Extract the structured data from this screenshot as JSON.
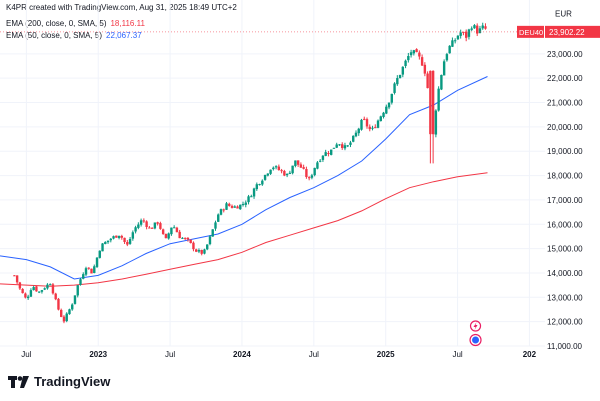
{
  "header": {
    "attribution": "K4PR created with TradingView.com, Aug 31, 2025 18:49 UTC+2"
  },
  "legend": [
    {
      "label": "EMA (200, close, 0, SMA, 5)",
      "value": "18,116.11",
      "color": "#f23645"
    },
    {
      "label": "EMA (50, close, 0, SMA, 5)",
      "value": "22,067.37",
      "color": "#2962ff"
    }
  ],
  "price_tag": {
    "symbol": "DEU40",
    "value": "23,902.22",
    "color": "#f23645"
  },
  "footer": {
    "brand": "TradingView"
  },
  "icons": [
    "lightning-icon",
    "earnings-icon",
    "tradingview-logo-icon"
  ],
  "colors": {
    "up": "#089981",
    "down": "#f23645",
    "ema200": "#f23645",
    "ema50": "#2962ff"
  },
  "chart_data": {
    "type": "candlestick",
    "currency": "EUR",
    "ylim": [
      11000,
      24800
    ],
    "y_ticks": [
      11000,
      12000,
      13000,
      14000,
      15000,
      16000,
      17000,
      18000,
      19000,
      20000,
      21000,
      22000,
      23000
    ],
    "y_tick_labels": [
      "11,000.00",
      "12,000.00",
      "13,000.00",
      "14,000.00",
      "15,000.00",
      "16,000.00",
      "17,000.00",
      "18,000.00",
      "19,000.00",
      "20,000.00",
      "21,000.00",
      "22,000.00",
      "23,000.00"
    ],
    "x_ticks": [
      "Jul",
      "2023",
      "Jul",
      "2024",
      "Jul",
      "2025",
      "Jul",
      "202"
    ],
    "x_tick_months": [
      0,
      6,
      12,
      18,
      24,
      30,
      36,
      42
    ],
    "x_range_months": [
      -2.2,
      43.3
    ],
    "grid": true,
    "anchors": [
      [
        -1.0,
        13900
      ],
      [
        -0.5,
        13300
      ],
      [
        0.0,
        12900
      ],
      [
        0.5,
        13500
      ],
      [
        1.0,
        13200
      ],
      [
        2.0,
        13600
      ],
      [
        2.6,
        12600
      ],
      [
        3.1,
        12000
      ],
      [
        3.8,
        12700
      ],
      [
        4.3,
        13500
      ],
      [
        5.0,
        14300
      ],
      [
        5.5,
        14000
      ],
      [
        6.2,
        15100
      ],
      [
        7.0,
        15400
      ],
      [
        7.8,
        15600
      ],
      [
        8.4,
        15100
      ],
      [
        9.0,
        15800
      ],
      [
        9.7,
        16200
      ],
      [
        10.3,
        15800
      ],
      [
        11.0,
        16100
      ],
      [
        11.6,
        15300
      ],
      [
        12.2,
        16000
      ],
      [
        12.8,
        15500
      ],
      [
        13.5,
        15300
      ],
      [
        14.2,
        14900
      ],
      [
        14.8,
        14800
      ],
      [
        15.3,
        15400
      ],
      [
        16.0,
        16400
      ],
      [
        16.7,
        16800
      ],
      [
        17.3,
        16700
      ],
      [
        18.0,
        16800
      ],
      [
        18.6,
        17100
      ],
      [
        19.2,
        17600
      ],
      [
        19.9,
        18000
      ],
      [
        20.5,
        18400
      ],
      [
        21.2,
        18200
      ],
      [
        21.8,
        18000
      ],
      [
        22.4,
        18600
      ],
      [
        23.0,
        18300
      ],
      [
        23.6,
        17800
      ],
      [
        24.2,
        18500
      ],
      [
        24.8,
        18900
      ],
      [
        25.4,
        19000
      ],
      [
        26.0,
        19400
      ],
      [
        26.7,
        19100
      ],
      [
        27.4,
        19600
      ],
      [
        28.1,
        20300
      ],
      [
        28.8,
        19800
      ],
      [
        29.4,
        20300
      ],
      [
        30.2,
        21000
      ],
      [
        30.9,
        21900
      ],
      [
        31.5,
        22500
      ],
      [
        32.1,
        23100
      ],
      [
        32.7,
        22900
      ],
      [
        33.2,
        22500
      ],
      [
        33.6,
        21300
      ],
      [
        34.0,
        20100
      ],
      [
        34.4,
        21500
      ],
      [
        34.8,
        22600
      ],
      [
        35.2,
        23200
      ],
      [
        35.7,
        23500
      ],
      [
        36.2,
        23900
      ],
      [
        36.7,
        23700
      ],
      [
        37.2,
        24200
      ],
      [
        37.7,
        23900
      ],
      [
        38.2,
        24100
      ],
      [
        38.5,
        23900
      ]
    ],
    "ema200": [
      [
        -2.2,
        13550
      ],
      [
        0,
        13500
      ],
      [
        2,
        13450
      ],
      [
        4,
        13500
      ],
      [
        6,
        13600
      ],
      [
        8,
        13750
      ],
      [
        10,
        13950
      ],
      [
        12,
        14150
      ],
      [
        14,
        14350
      ],
      [
        16,
        14550
      ],
      [
        18,
        14850
      ],
      [
        20,
        15250
      ],
      [
        22,
        15550
      ],
      [
        24,
        15850
      ],
      [
        26,
        16150
      ],
      [
        28,
        16550
      ],
      [
        30,
        17050
      ],
      [
        32,
        17500
      ],
      [
        34,
        17750
      ],
      [
        36,
        17950
      ],
      [
        38.5,
        18116
      ]
    ],
    "ema50": [
      [
        -2.2,
        14700
      ],
      [
        0,
        14550
      ],
      [
        2,
        14250
      ],
      [
        4,
        13750
      ],
      [
        6,
        13900
      ],
      [
        8,
        14300
      ],
      [
        10,
        14800
      ],
      [
        12,
        15200
      ],
      [
        14,
        15400
      ],
      [
        16,
        15600
      ],
      [
        18,
        16000
      ],
      [
        20,
        16600
      ],
      [
        22,
        17100
      ],
      [
        24,
        17500
      ],
      [
        26,
        18000
      ],
      [
        28,
        18600
      ],
      [
        30,
        19500
      ],
      [
        32,
        20500
      ],
      [
        34,
        20900
      ],
      [
        36,
        21500
      ],
      [
        38.5,
        22067
      ]
    ]
  }
}
